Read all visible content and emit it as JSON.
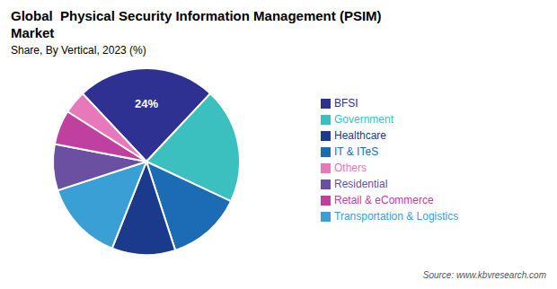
{
  "chart_data": {
    "type": "pie",
    "title": [
      "Global  Physical Security Information Management (PSIM)",
      "Market"
    ],
    "subtitle": "Share, By Vertical, 2023 (%)",
    "source": "Source: www.kbvresearch.com",
    "categories": [
      "BFSI",
      "Government",
      "IT & ITeS",
      "Healthcare",
      "Transportation & Logistics",
      "Residential",
      "Retail & eCommerce",
      "Others"
    ],
    "values": [
      24,
      20,
      13,
      11,
      14,
      8,
      6,
      4
    ],
    "colors": [
      "#2E3192",
      "#3BBFBF",
      "#1B6BB5",
      "#1B3A8C",
      "#3A9FD5",
      "#6B4FA0",
      "#C040A0",
      "#E878BC"
    ],
    "annotations": [
      {
        "text": "24%",
        "category": "BFSI"
      }
    ],
    "legend": "right"
  }
}
